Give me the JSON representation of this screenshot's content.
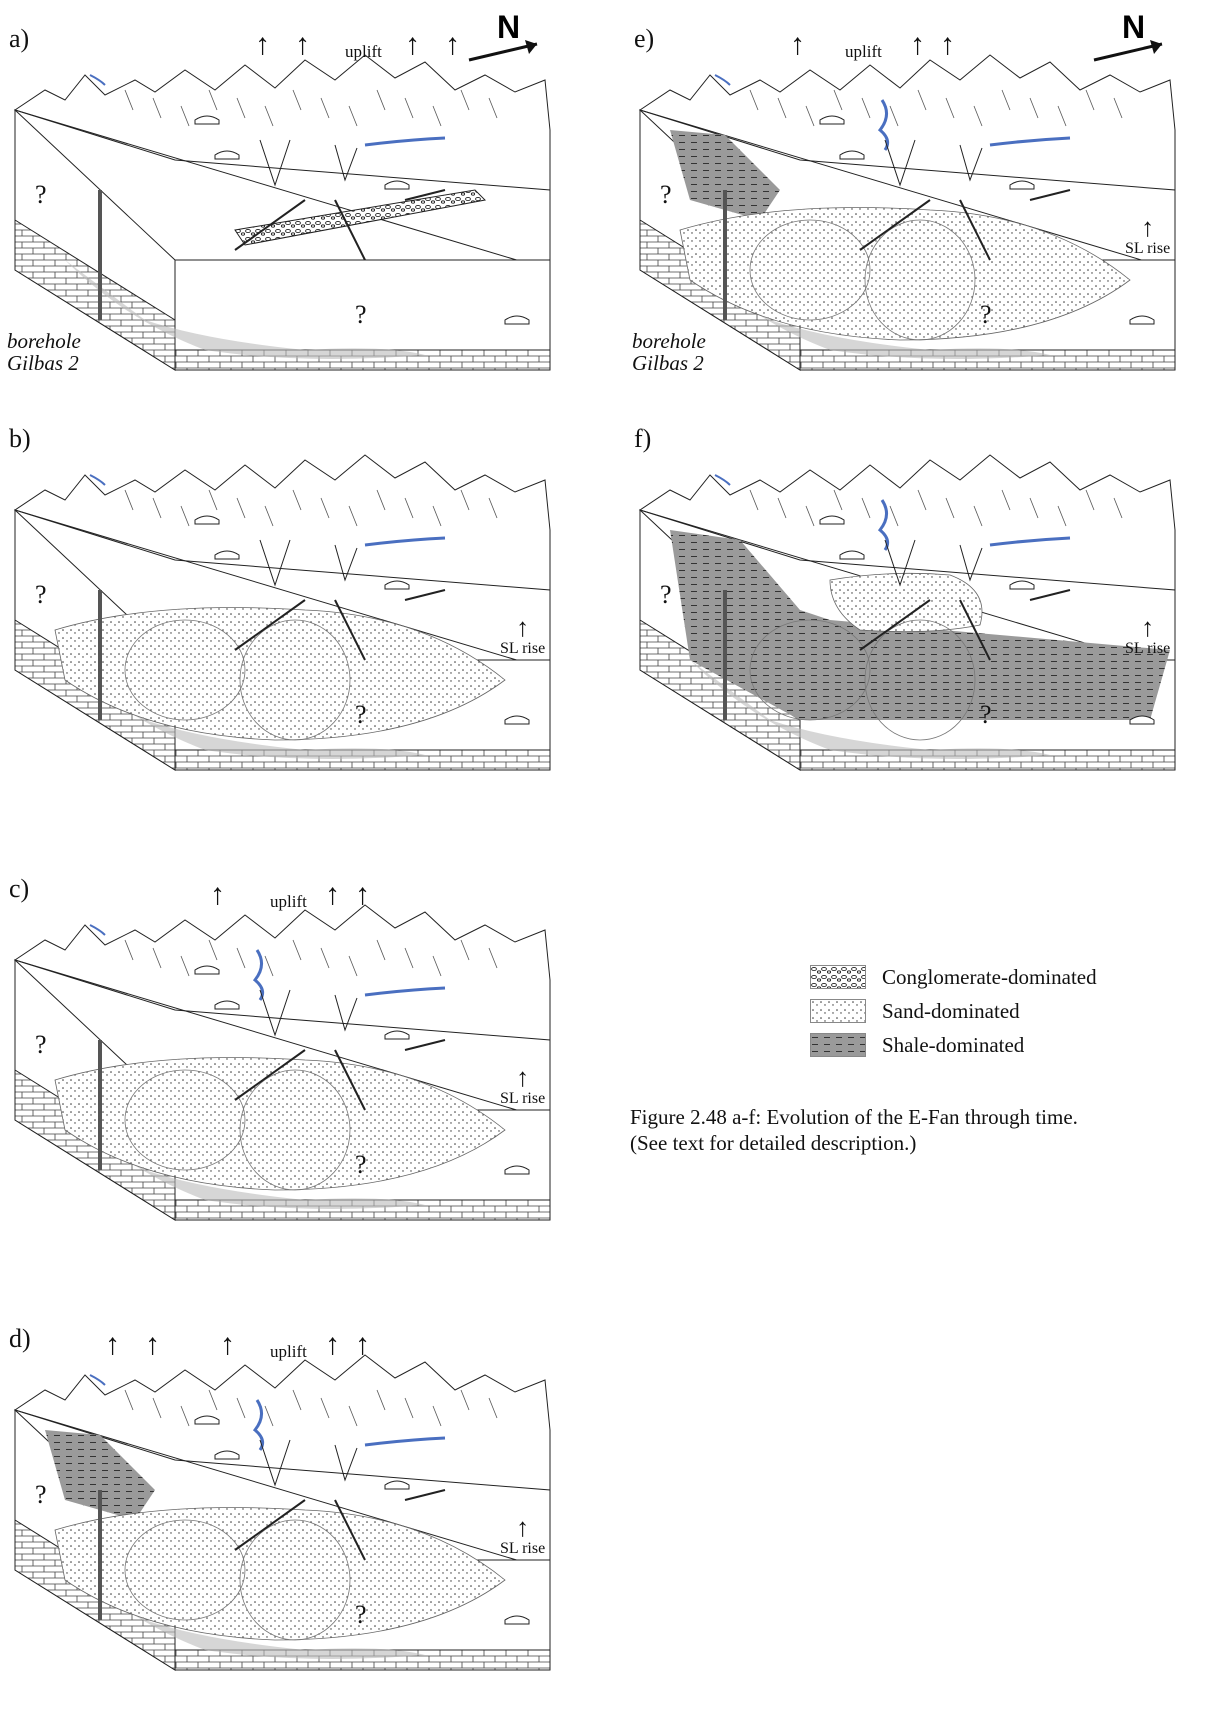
{
  "panels": [
    {
      "id": "a",
      "label": "a)",
      "uplift": "uplift",
      "north": "N",
      "sl_rise": "",
      "borehole": [
        "borehole",
        "Gilbas 2"
      ]
    },
    {
      "id": "b",
      "label": "b)",
      "uplift": "",
      "north": "",
      "sl_rise": "SL rise",
      "borehole": []
    },
    {
      "id": "c",
      "label": "c)",
      "uplift": "uplift",
      "north": "",
      "sl_rise": "SL rise",
      "borehole": []
    },
    {
      "id": "d",
      "label": "d)",
      "uplift": "uplift",
      "north": "",
      "sl_rise": "SL rise",
      "borehole": []
    },
    {
      "id": "e",
      "label": "e)",
      "uplift": "uplift",
      "north": "N",
      "sl_rise": "SL rise",
      "borehole": [
        "borehole",
        "Gilbas 2"
      ]
    },
    {
      "id": "f",
      "label": "f)",
      "uplift": "",
      "north": "",
      "sl_rise": "SL rise",
      "borehole": []
    }
  ],
  "question_mark": "?",
  "legend": [
    {
      "label": "Conglomerate-dominated",
      "pattern": "conglomerate"
    },
    {
      "label": "Sand-dominated",
      "pattern": "sand"
    },
    {
      "label": "Shale-dominated",
      "pattern": "shale"
    }
  ],
  "caption": {
    "line1": "Figure 2.48 a-f: Evolution of the E-Fan through time.",
    "line2": "(See text for detailed description.)"
  },
  "colors": {
    "river": "#4a6fc0",
    "ink": "#222222",
    "shale": "#999999",
    "lake": "#aaaaaa"
  }
}
